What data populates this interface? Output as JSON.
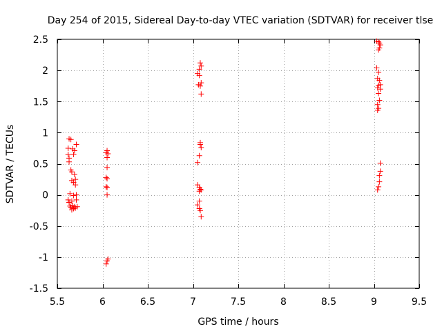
{
  "chart_data": {
    "type": "scatter",
    "title": "Day 254 of 2015, Sidereal Day-to-day VTEC variation (SDTVAR) for receiver tlse",
    "xlabel": "GPS time / hours",
    "ylabel": "SDTVAR / TECUs",
    "xlim": [
      5.5,
      9.5
    ],
    "ylim": [
      -1.5,
      2.5
    ],
    "xticks": [
      5.5,
      6,
      6.5,
      7,
      7.5,
      8,
      8.5,
      9,
      9.5
    ],
    "yticks": [
      -1.5,
      -1,
      -0.5,
      0,
      0.5,
      1,
      1.5,
      2,
      2.5
    ],
    "xtick_labels": [
      "5.5",
      "6",
      "6.5",
      "7",
      "7.5",
      "8",
      "8.5",
      "9",
      "9.5"
    ],
    "ytick_labels": [
      "-1.5",
      "-1",
      "-0.5",
      "0",
      "0.5",
      "1",
      "1.5",
      "2",
      "2.5"
    ],
    "grid": true,
    "marker": "+",
    "series": [
      {
        "name": "SDTVAR",
        "color": "#ff0000",
        "points": [
          [
            5.63,
            0.9
          ],
          [
            5.65,
            0.89
          ],
          [
            5.62,
            0.75
          ],
          [
            5.67,
            0.74
          ],
          [
            5.69,
            0.71
          ],
          [
            5.71,
            0.81
          ],
          [
            5.62,
            0.65
          ],
          [
            5.68,
            0.65
          ],
          [
            5.63,
            0.59
          ],
          [
            5.63,
            0.53
          ],
          [
            5.65,
            0.4
          ],
          [
            5.66,
            0.37
          ],
          [
            5.69,
            0.33
          ],
          [
            5.7,
            0.25
          ],
          [
            5.66,
            0.23
          ],
          [
            5.68,
            0.2
          ],
          [
            5.7,
            0.16
          ],
          [
            5.64,
            0.02
          ],
          [
            5.68,
            -0.01
          ],
          [
            5.71,
            0.0
          ],
          [
            5.62,
            -0.08
          ],
          [
            5.63,
            -0.12
          ],
          [
            5.66,
            -0.1
          ],
          [
            5.71,
            -0.08
          ],
          [
            5.64,
            -0.18
          ],
          [
            5.65,
            -0.2
          ],
          [
            5.67,
            -0.17
          ],
          [
            5.68,
            -0.22
          ],
          [
            5.69,
            -0.19
          ],
          [
            5.7,
            -0.21
          ],
          [
            5.72,
            -0.19
          ],
          [
            5.66,
            -0.24
          ],
          [
            6.04,
            0.68
          ],
          [
            6.05,
            0.71
          ],
          [
            6.06,
            0.66
          ],
          [
            6.05,
            0.6
          ],
          [
            6.05,
            0.44
          ],
          [
            6.04,
            0.28
          ],
          [
            6.05,
            0.26
          ],
          [
            6.04,
            0.13
          ],
          [
            6.05,
            0.12
          ],
          [
            6.05,
            0.0
          ],
          [
            6.06,
            -1.03
          ],
          [
            6.05,
            -1.06
          ],
          [
            6.04,
            -1.11
          ],
          [
            7.08,
            2.12
          ],
          [
            7.09,
            2.07
          ],
          [
            7.07,
            2.02
          ],
          [
            7.05,
            1.95
          ],
          [
            7.07,
            1.92
          ],
          [
            7.09,
            1.8
          ],
          [
            7.06,
            1.77
          ],
          [
            7.08,
            1.75
          ],
          [
            7.09,
            1.62
          ],
          [
            7.08,
            0.84
          ],
          [
            7.08,
            0.81
          ],
          [
            7.09,
            0.76
          ],
          [
            7.07,
            0.63
          ],
          [
            7.05,
            0.52
          ],
          [
            7.05,
            0.16
          ],
          [
            7.07,
            0.12
          ],
          [
            7.08,
            0.09
          ],
          [
            7.09,
            0.08
          ],
          [
            7.07,
            0.06
          ],
          [
            7.07,
            -0.1
          ],
          [
            7.05,
            -0.16
          ],
          [
            7.07,
            -0.22
          ],
          [
            7.08,
            -0.25
          ],
          [
            7.09,
            -0.35
          ],
          [
            9.03,
            2.47
          ],
          [
            9.05,
            2.46
          ],
          [
            9.06,
            2.44
          ],
          [
            9.07,
            2.41
          ],
          [
            9.06,
            2.36
          ],
          [
            9.05,
            2.33
          ],
          [
            9.03,
            2.04
          ],
          [
            9.05,
            1.97
          ],
          [
            9.04,
            1.87
          ],
          [
            9.06,
            1.84
          ],
          [
            9.07,
            1.77
          ],
          [
            9.05,
            1.76
          ],
          [
            9.04,
            1.72
          ],
          [
            9.07,
            1.7
          ],
          [
            9.05,
            1.63
          ],
          [
            9.06,
            1.52
          ],
          [
            9.04,
            1.45
          ],
          [
            9.05,
            1.39
          ],
          [
            9.04,
            1.36
          ],
          [
            9.07,
            0.51
          ],
          [
            9.07,
            0.38
          ],
          [
            9.06,
            0.31
          ],
          [
            9.06,
            0.21
          ],
          [
            9.05,
            0.13
          ],
          [
            9.04,
            0.08
          ]
        ]
      }
    ]
  }
}
